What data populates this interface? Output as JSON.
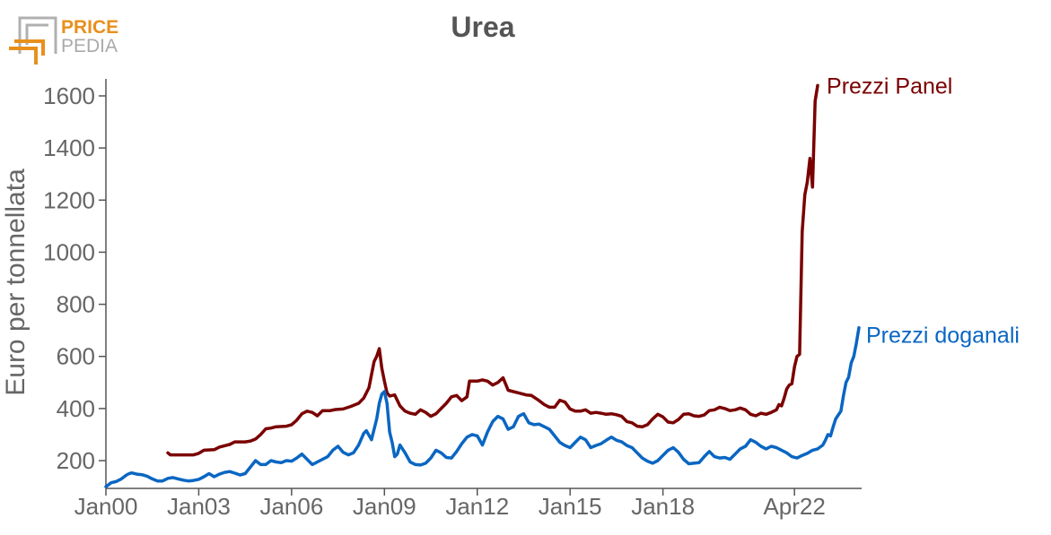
{
  "logo": {
    "word1": "PRICE",
    "word2": "PEDIA",
    "color_primary": "#e8901c",
    "color_secondary": "#aaaaaa"
  },
  "chart_data": {
    "type": "line",
    "title": "Urea",
    "ylabel": "Euro per tonnellata",
    "xlabel": "",
    "ylim": [
      100,
      1670
    ],
    "yticks": [
      200,
      400,
      600,
      800,
      1000,
      1200,
      1400,
      1600
    ],
    "x_start": "Jan00",
    "x_end": "Apr22",
    "xticks": [
      {
        "label": "Jan00",
        "t": 0
      },
      {
        "label": "Jan03",
        "t": 36
      },
      {
        "label": "Jan06",
        "t": 72
      },
      {
        "label": "Jan09",
        "t": 108
      },
      {
        "label": "Jan12",
        "t": 144
      },
      {
        "label": "Jan15",
        "t": 180
      },
      {
        "label": "Jan18",
        "t": 216
      },
      {
        "label": "Apr22",
        "t": 267
      }
    ],
    "grid": false,
    "series": [
      {
        "name": "Prezzi Panel",
        "color": "#7a0000",
        "points": [
          [
            24,
            230
          ],
          [
            25,
            222
          ],
          [
            30,
            222
          ],
          [
            34,
            222
          ],
          [
            36,
            228
          ],
          [
            38,
            240
          ],
          [
            42,
            242
          ],
          [
            44,
            252
          ],
          [
            48,
            262
          ],
          [
            50,
            272
          ],
          [
            54,
            272
          ],
          [
            56,
            275
          ],
          [
            58,
            283
          ],
          [
            60,
            300
          ],
          [
            62,
            322
          ],
          [
            64,
            325
          ],
          [
            66,
            330
          ],
          [
            70,
            332
          ],
          [
            72,
            338
          ],
          [
            74,
            355
          ],
          [
            76,
            380
          ],
          [
            78,
            390
          ],
          [
            80,
            385
          ],
          [
            82,
            372
          ],
          [
            84,
            392
          ],
          [
            87,
            392
          ],
          [
            89,
            396
          ],
          [
            92,
            398
          ],
          [
            95,
            408
          ],
          [
            98,
            420
          ],
          [
            100,
            440
          ],
          [
            102,
            480
          ],
          [
            104,
            580
          ],
          [
            105,
            600
          ],
          [
            106,
            630
          ],
          [
            107,
            555
          ],
          [
            108,
            505
          ],
          [
            109,
            460
          ],
          [
            110,
            448
          ],
          [
            112,
            452
          ],
          [
            114,
            410
          ],
          [
            116,
            390
          ],
          [
            118,
            382
          ],
          [
            120,
            378
          ],
          [
            122,
            395
          ],
          [
            124,
            385
          ],
          [
            126,
            370
          ],
          [
            128,
            380
          ],
          [
            130,
            400
          ],
          [
            132,
            420
          ],
          [
            134,
            445
          ],
          [
            136,
            450
          ],
          [
            138,
            430
          ],
          [
            140,
            445
          ],
          [
            141,
            505
          ],
          [
            144,
            505
          ],
          [
            146,
            510
          ],
          [
            148,
            505
          ],
          [
            150,
            490
          ],
          [
            152,
            500
          ],
          [
            154,
            518
          ],
          [
            156,
            470
          ],
          [
            158,
            465
          ],
          [
            160,
            460
          ],
          [
            163,
            452
          ],
          [
            165,
            450
          ],
          [
            168,
            430
          ],
          [
            170,
            415
          ],
          [
            172,
            405
          ],
          [
            174,
            405
          ],
          [
            176,
            432
          ],
          [
            178,
            425
          ],
          [
            180,
            398
          ],
          [
            182,
            390
          ],
          [
            184,
            390
          ],
          [
            186,
            395
          ],
          [
            188,
            382
          ],
          [
            190,
            385
          ],
          [
            192,
            382
          ],
          [
            194,
            378
          ],
          [
            196,
            380
          ],
          [
            198,
            376
          ],
          [
            200,
            370
          ],
          [
            202,
            350
          ],
          [
            204,
            345
          ],
          [
            206,
            332
          ],
          [
            208,
            330
          ],
          [
            210,
            338
          ],
          [
            212,
            360
          ],
          [
            214,
            378
          ],
          [
            216,
            368
          ],
          [
            218,
            348
          ],
          [
            220,
            345
          ],
          [
            222,
            358
          ],
          [
            224,
            378
          ],
          [
            226,
            380
          ],
          [
            228,
            372
          ],
          [
            230,
            370
          ],
          [
            232,
            375
          ],
          [
            234,
            392
          ],
          [
            236,
            395
          ],
          [
            238,
            405
          ],
          [
            240,
            400
          ],
          [
            242,
            392
          ],
          [
            244,
            395
          ],
          [
            246,
            402
          ],
          [
            248,
            395
          ],
          [
            250,
            378
          ],
          [
            252,
            372
          ],
          [
            254,
            382
          ],
          [
            256,
            378
          ],
          [
            258,
            385
          ],
          [
            260,
            395
          ],
          [
            261,
            415
          ],
          [
            262,
            410
          ],
          [
            263,
            440
          ],
          [
            264,
            475
          ],
          [
            265,
            490
          ],
          [
            266,
            495
          ],
          [
            267,
            560
          ],
          [
            268,
            600
          ],
          [
            269,
            608
          ],
          [
            270,
            1080
          ],
          [
            271,
            1220
          ],
          [
            272,
            1270
          ],
          [
            273,
            1360
          ],
          [
            274,
            1250
          ],
          [
            275,
            1580
          ],
          [
            276,
            1640
          ]
        ]
      },
      {
        "name": "Prezzi doganali",
        "color": "#0a66c2",
        "points": [
          [
            0,
            100
          ],
          [
            2,
            115
          ],
          [
            4,
            120
          ],
          [
            6,
            130
          ],
          [
            8,
            145
          ],
          [
            9,
            150
          ],
          [
            10,
            153
          ],
          [
            12,
            148
          ],
          [
            14,
            146
          ],
          [
            16,
            140
          ],
          [
            18,
            130
          ],
          [
            20,
            122
          ],
          [
            22,
            122
          ],
          [
            24,
            132
          ],
          [
            26,
            135
          ],
          [
            28,
            130
          ],
          [
            30,
            125
          ],
          [
            32,
            122
          ],
          [
            34,
            124
          ],
          [
            36,
            128
          ],
          [
            38,
            138
          ],
          [
            40,
            150
          ],
          [
            42,
            138
          ],
          [
            44,
            148
          ],
          [
            46,
            155
          ],
          [
            48,
            158
          ],
          [
            50,
            152
          ],
          [
            52,
            145
          ],
          [
            54,
            150
          ],
          [
            56,
            175
          ],
          [
            58,
            200
          ],
          [
            60,
            185
          ],
          [
            62,
            185
          ],
          [
            64,
            200
          ],
          [
            66,
            195
          ],
          [
            68,
            192
          ],
          [
            70,
            200
          ],
          [
            72,
            198
          ],
          [
            74,
            210
          ],
          [
            76,
            225
          ],
          [
            78,
            205
          ],
          [
            80,
            185
          ],
          [
            82,
            195
          ],
          [
            84,
            205
          ],
          [
            86,
            215
          ],
          [
            88,
            240
          ],
          [
            90,
            255
          ],
          [
            92,
            232
          ],
          [
            94,
            222
          ],
          [
            96,
            230
          ],
          [
            98,
            260
          ],
          [
            100,
            305
          ],
          [
            101,
            315
          ],
          [
            103,
            280
          ],
          [
            105,
            360
          ],
          [
            106,
            420
          ],
          [
            107,
            455
          ],
          [
            108,
            465
          ],
          [
            109,
            420
          ],
          [
            110,
            310
          ],
          [
            111,
            270
          ],
          [
            112,
            215
          ],
          [
            113,
            225
          ],
          [
            114,
            260
          ],
          [
            116,
            230
          ],
          [
            118,
            195
          ],
          [
            120,
            185
          ],
          [
            122,
            183
          ],
          [
            124,
            190
          ],
          [
            126,
            210
          ],
          [
            128,
            240
          ],
          [
            130,
            230
          ],
          [
            132,
            212
          ],
          [
            134,
            210
          ],
          [
            136,
            235
          ],
          [
            138,
            265
          ],
          [
            140,
            290
          ],
          [
            142,
            300
          ],
          [
            144,
            295
          ],
          [
            146,
            260
          ],
          [
            148,
            310
          ],
          [
            150,
            350
          ],
          [
            152,
            370
          ],
          [
            154,
            360
          ],
          [
            156,
            320
          ],
          [
            158,
            330
          ],
          [
            160,
            370
          ],
          [
            162,
            380
          ],
          [
            164,
            345
          ],
          [
            166,
            338
          ],
          [
            168,
            340
          ],
          [
            170,
            330
          ],
          [
            172,
            320
          ],
          [
            174,
            295
          ],
          [
            176,
            270
          ],
          [
            178,
            258
          ],
          [
            180,
            250
          ],
          [
            182,
            270
          ],
          [
            184,
            290
          ],
          [
            186,
            280
          ],
          [
            188,
            250
          ],
          [
            190,
            258
          ],
          [
            192,
            265
          ],
          [
            194,
            278
          ],
          [
            196,
            290
          ],
          [
            198,
            278
          ],
          [
            200,
            272
          ],
          [
            202,
            258
          ],
          [
            204,
            250
          ],
          [
            206,
            230
          ],
          [
            208,
            210
          ],
          [
            210,
            198
          ],
          [
            212,
            190
          ],
          [
            214,
            200
          ],
          [
            216,
            220
          ],
          [
            218,
            240
          ],
          [
            220,
            250
          ],
          [
            222,
            232
          ],
          [
            224,
            205
          ],
          [
            226,
            188
          ],
          [
            228,
            190
          ],
          [
            230,
            192
          ],
          [
            232,
            215
          ],
          [
            234,
            235
          ],
          [
            236,
            215
          ],
          [
            238,
            210
          ],
          [
            240,
            212
          ],
          [
            242,
            205
          ],
          [
            244,
            225
          ],
          [
            246,
            245
          ],
          [
            248,
            255
          ],
          [
            250,
            280
          ],
          [
            252,
            270
          ],
          [
            254,
            255
          ],
          [
            256,
            245
          ],
          [
            258,
            255
          ],
          [
            260,
            250
          ],
          [
            262,
            240
          ],
          [
            264,
            230
          ],
          [
            266,
            215
          ],
          [
            268,
            210
          ],
          [
            270,
            220
          ],
          [
            272,
            228
          ],
          [
            274,
            240
          ],
          [
            276,
            245
          ],
          [
            278,
            260
          ],
          [
            279,
            278
          ],
          [
            280,
            300
          ],
          [
            281,
            295
          ],
          [
            282,
            330
          ],
          [
            283,
            360
          ],
          [
            284,
            375
          ],
          [
            285,
            390
          ],
          [
            286,
            450
          ],
          [
            287,
            500
          ],
          [
            288,
            520
          ],
          [
            289,
            575
          ],
          [
            290,
            600
          ],
          [
            291,
            650
          ],
          [
            292,
            710
          ]
        ]
      }
    ]
  }
}
